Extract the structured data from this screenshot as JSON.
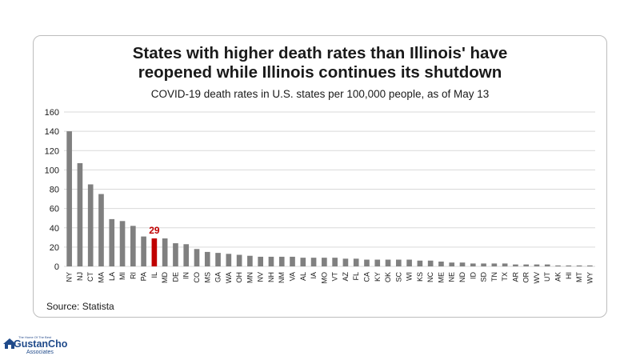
{
  "logo": {
    "tagline": "The Home Of The Best",
    "wordmark": "GustanCho",
    "associates": "Associates"
  },
  "colors": {
    "bar": "#808080",
    "highlight": "#c00000",
    "grid": "#d9d9d9",
    "text": "#1a1a1a"
  },
  "chart_data": {
    "type": "bar",
    "title": "States with higher death rates than Illinois' have reopened while Illinois continues its shutdown",
    "title_lines": [
      "States with higher death rates than Illinois' have",
      "reopened while Illinois continues its shutdown"
    ],
    "subtitle": "COVID-19 death rates in U.S. states per 100,000 people, as of May 13",
    "source": "Source: Statista",
    "xlabel": "",
    "ylabel": "",
    "ylim": [
      0,
      160
    ],
    "yticks": [
      0,
      20,
      40,
      60,
      80,
      100,
      120,
      140,
      160
    ],
    "grid": true,
    "categories": [
      "NY",
      "NJ",
      "CT",
      "MA",
      "LA",
      "MI",
      "RI",
      "PA",
      "IL",
      "MD",
      "DE",
      "IN",
      "CO",
      "MS",
      "GA",
      "WA",
      "OH",
      "MN",
      "NV",
      "NH",
      "NM",
      "VA",
      "AL",
      "IA",
      "MO",
      "VT",
      "AZ",
      "FL",
      "CA",
      "KY",
      "OK",
      "SC",
      "WI",
      "KS",
      "NC",
      "ME",
      "NE",
      "ND",
      "ID",
      "SD",
      "TN",
      "TX",
      "AR",
      "OR",
      "WV",
      "UT",
      "AK",
      "HI",
      "MT",
      "WY"
    ],
    "values": [
      140,
      107,
      85,
      75,
      49,
      47,
      42,
      31,
      29,
      29,
      24,
      23,
      18,
      15,
      14,
      13,
      12,
      11,
      10,
      10,
      10,
      10,
      9,
      9,
      9,
      9,
      8,
      8,
      7,
      7,
      7,
      7,
      7,
      6,
      6,
      5,
      4,
      4,
      3,
      3,
      3,
      3,
      2,
      2,
      2,
      2,
      1,
      1,
      1,
      1
    ],
    "highlight": {
      "category": "IL",
      "label": "29"
    }
  }
}
